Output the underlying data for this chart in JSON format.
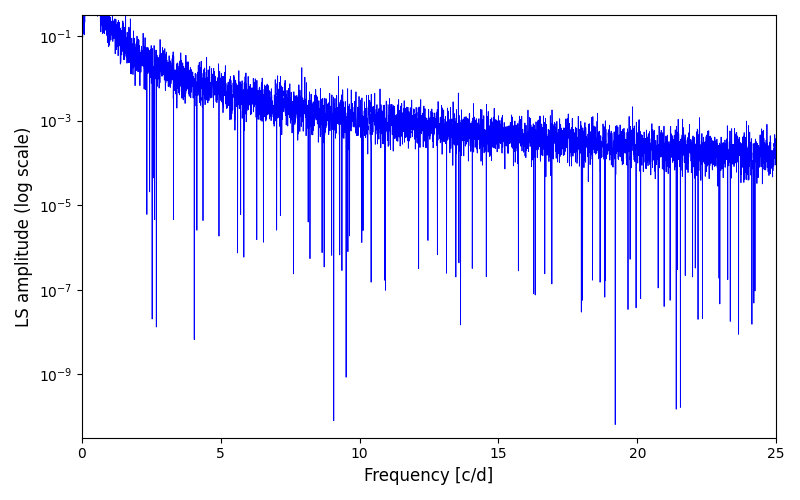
{
  "title": "",
  "xlabel": "Frequency [c/d]",
  "ylabel": "LS amplitude (log scale)",
  "line_color": "#0000ff",
  "line_width": 0.6,
  "xlim": [
    0,
    25
  ],
  "ylim_log": [
    -10.5,
    -0.5
  ],
  "xmin": 0.0,
  "xmax": 25.0,
  "n_points": 5000,
  "seed": 7,
  "base_amplitude": 0.18,
  "decay_exponent": 2.2,
  "noise_floor": 3e-06,
  "spike_floor": 1e-11,
  "log_noise_std": 0.6,
  "n_deep_dips": 80,
  "background_color": "#ffffff",
  "fig_width": 8.0,
  "fig_height": 5.0,
  "dpi": 100
}
